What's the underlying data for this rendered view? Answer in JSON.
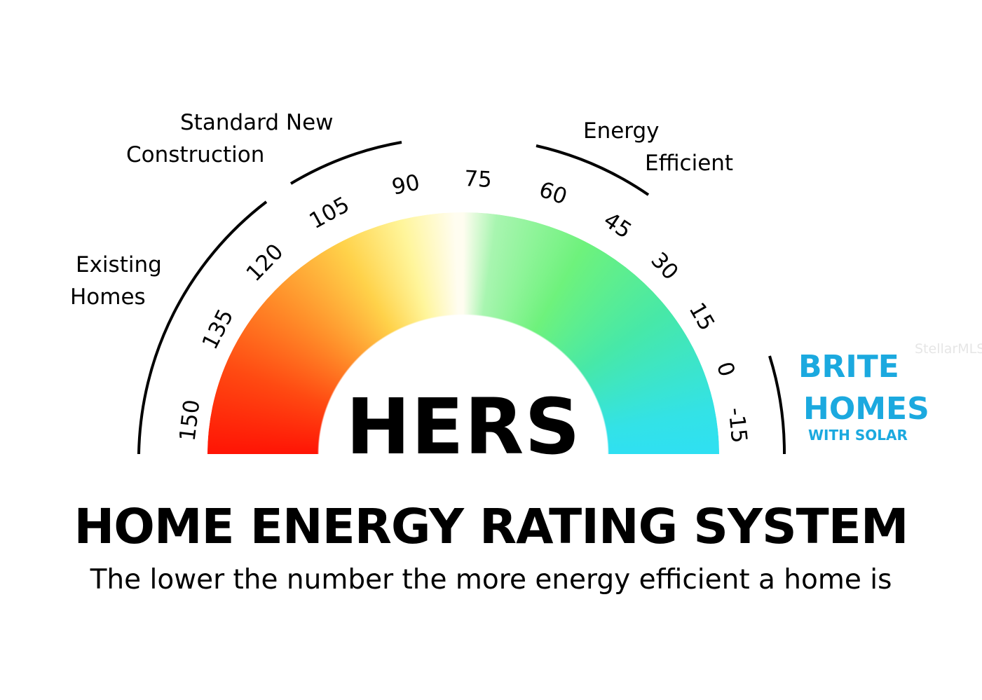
{
  "categories": {
    "existing": [
      "Existing",
      "Homes"
    ],
    "standard": [
      "Standard New",
      "Construction"
    ],
    "efficient": [
      "Energy",
      "Efficient"
    ]
  },
  "scale_ticks": [
    "150",
    "135",
    "120",
    "105",
    "90",
    "75",
    "60",
    "45",
    "30",
    "15",
    "0",
    "-15"
  ],
  "center_label": "HERS",
  "title": "HOME ENERGY RATING SYSTEM",
  "subtitle": "The lower the number the more energy efficient a home is",
  "brand": {
    "line1": "BRITE",
    "line2": "HOMES",
    "line3": "WITH SOLAR",
    "color": "#1ba9df"
  },
  "watermark": "StellarMLS",
  "colors": {
    "high": "#ff1405",
    "mid": "#fffdf0",
    "low": "#2fe0f2"
  }
}
